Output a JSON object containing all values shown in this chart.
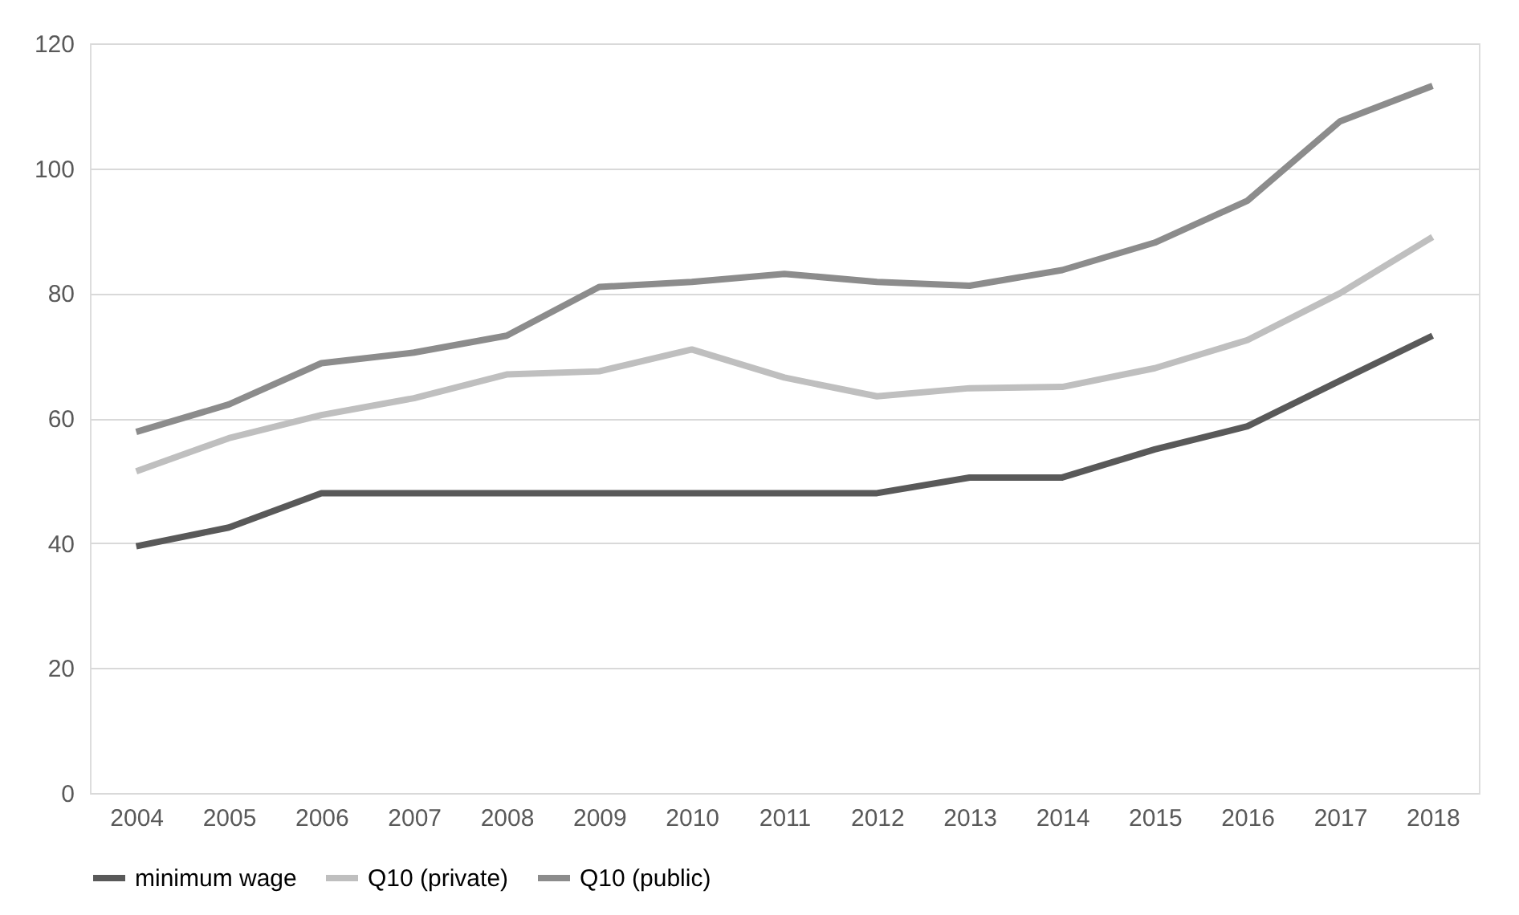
{
  "chart_data": {
    "type": "line",
    "categories": [
      "2004",
      "2005",
      "2006",
      "2007",
      "2008",
      "2009",
      "2010",
      "2011",
      "2012",
      "2013",
      "2014",
      "2015",
      "2016",
      "2017",
      "2018"
    ],
    "series": [
      {
        "name": "minimum wage",
        "color": "#595959",
        "values": [
          39.5,
          42.5,
          48,
          48,
          48,
          48,
          48,
          48,
          48,
          50.5,
          50.5,
          55,
          58.7,
          66,
          73.2
        ]
      },
      {
        "name": "Q10 (private)",
        "color": "#bfbfbf",
        "values": [
          51.5,
          56.8,
          60.5,
          63.2,
          67,
          67.5,
          71,
          66.5,
          63.5,
          64.8,
          65,
          68,
          72.5,
          80,
          89
        ]
      },
      {
        "name": "Q10 (public)",
        "color": "#8c8c8c",
        "values": [
          57.8,
          62.2,
          68.8,
          70.5,
          73.2,
          81,
          81.8,
          83.1,
          81.8,
          81.2,
          83.7,
          88.1,
          94.8,
          107.5,
          113.2
        ]
      }
    ],
    "ylim": [
      0,
      120
    ],
    "yticks": [
      0,
      20,
      40,
      60,
      80,
      100,
      120
    ],
    "grid": "y",
    "legend": "bottom",
    "marker": "none",
    "line_style": "solid"
  }
}
